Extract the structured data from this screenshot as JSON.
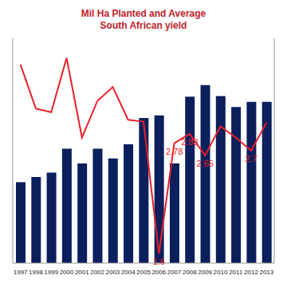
{
  "chart_data": {
    "type": "bar",
    "title": "Mil Ha Planted and Average South African yield",
    "categories": [
      "1997",
      "1998",
      "1999",
      "2000",
      "2001",
      "2002",
      "2003",
      "2004",
      "2005",
      "2006",
      "2007",
      "2008",
      "2009",
      "2010",
      "2011",
      "2012",
      "2013"
    ],
    "ylim": [
      0,
      3.5
    ],
    "y2lim": [
      1.5,
      3.9
    ],
    "tick_labels": "x",
    "grid": false,
    "series": [
      {
        "type": "bar",
        "color": "#0b1f5c",
        "values": [
          1.26,
          1.34,
          1.41,
          1.78,
          1.55,
          1.78,
          1.63,
          1.85,
          2.26,
          2.3,
          1.55,
          2.59,
          2.77,
          2.6,
          2.43,
          2.51,
          2.51
        ]
      },
      {
        "type": "line",
        "axis": "y2",
        "color": "#e8202a",
        "marker": "none",
        "data_labels": true,
        "values": [
          3.62,
          3.15,
          3.11,
          3.69,
          2.84,
          3.23,
          3.38,
          3.03,
          3.01,
          1.6,
          2.78,
          2.88,
          2.65,
          2.96,
          2.84,
          2.7,
          3.0
        ],
        "value_labels": [
          null,
          null,
          null,
          null,
          null,
          null,
          null,
          null,
          null,
          "1.6",
          "2.78",
          "2.88",
          "2.65",
          null,
          null,
          "2.7",
          null
        ]
      }
    ]
  }
}
